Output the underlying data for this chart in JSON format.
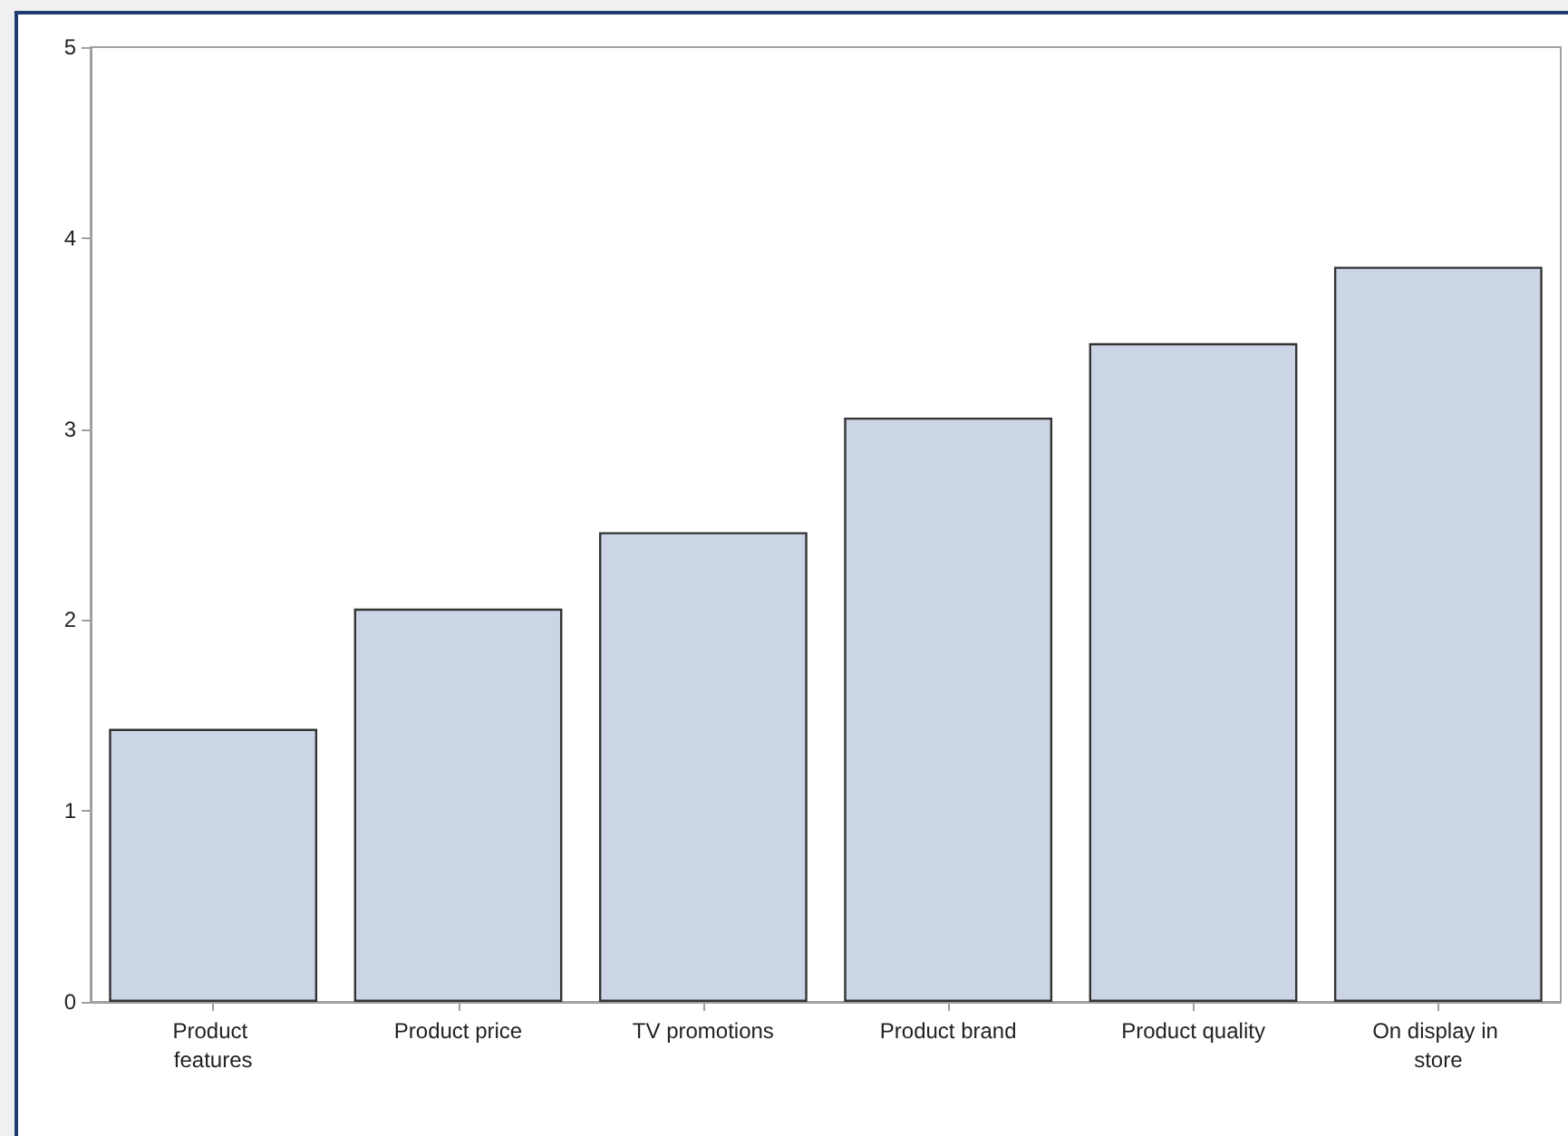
{
  "chart_data": {
    "type": "bar",
    "categories": [
      "Product features",
      "Product price",
      "TV promotions",
      "Product brand",
      "Product quality",
      "On display in store"
    ],
    "values": [
      1.43,
      2.06,
      2.46,
      3.06,
      3.45,
      3.85
    ],
    "color": "#cbd5e5",
    "ylim": [
      0,
      5
    ],
    "yticks": [
      0,
      1,
      2,
      3,
      4,
      5
    ],
    "grid": false
  }
}
